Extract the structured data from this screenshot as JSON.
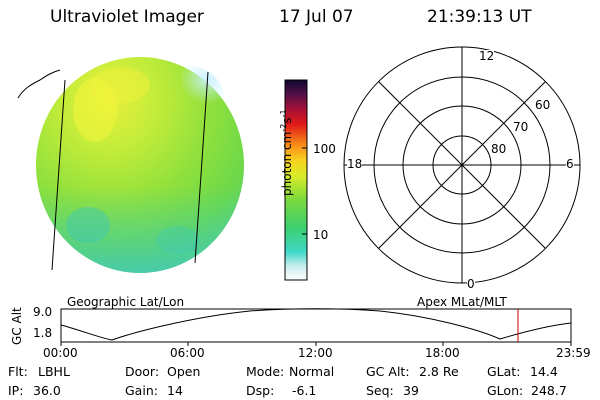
{
  "header": {
    "title": "Ultraviolet Imager",
    "date": "17 Jul 07",
    "time": "21:39:13 UT"
  },
  "colorbar": {
    "label": "photon cm",
    "label_exp1": "-2",
    "label_mid": "s",
    "label_exp2": "-1",
    "ticks": [
      "100",
      "10"
    ]
  },
  "polar_plot": {
    "mlt_labels": {
      "top": "12",
      "left": "18",
      "right": "6",
      "bottom": "0"
    },
    "lat_labels": [
      "60",
      "70",
      "80"
    ]
  },
  "orbit_panel": {
    "left_label": "Geographic Lat/Lon",
    "right_label": "Apex MLat/MLT",
    "y_axis_label": "GC Alt",
    "y_ticks": [
      "9.0",
      "1.8"
    ],
    "x_ticks": [
      "00:00",
      "06:00",
      "12:00",
      "18:00",
      "23:59"
    ],
    "current_time_color": "#cc0000"
  },
  "footer": {
    "row1": [
      {
        "key": "Flt:",
        "value": "LBHL"
      },
      {
        "key": "Door:",
        "value": "Open"
      },
      {
        "key": "Mode:",
        "value": "Normal"
      },
      {
        "key": "GC Alt:",
        "value": "2.8 Re"
      },
      {
        "key": "GLat:",
        "value": "14.4"
      }
    ],
    "row2": [
      {
        "key": "IP:",
        "value": "36.0"
      },
      {
        "key": "Gain:",
        "value": "14"
      },
      {
        "key": "Dsp:",
        "value": "-6.1"
      },
      {
        "key": "Seq:",
        "value": "39"
      },
      {
        "key": "GLon:",
        "value": "248.7"
      }
    ]
  }
}
